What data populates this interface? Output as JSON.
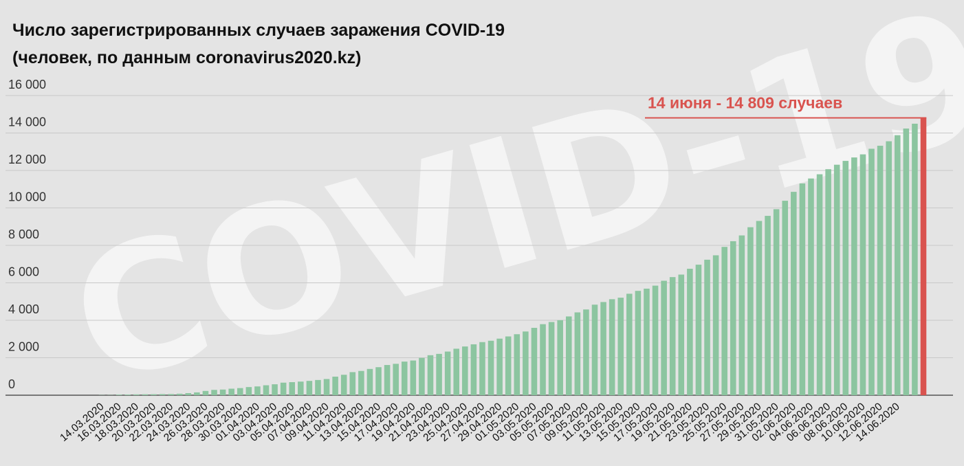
{
  "chart_data": {
    "type": "bar",
    "title": "Число зарегистрированных случаев заражения COVID-19",
    "subtitle": "(человек, по данным coronavirus2020.kz)",
    "watermark": "COVID-19",
    "annotation": "14 июня - 14 809 случаев",
    "ylim": [
      0,
      16000
    ],
    "yticks": [
      0,
      2000,
      4000,
      6000,
      8000,
      10000,
      12000,
      14000,
      16000
    ],
    "ytick_labels": [
      "0",
      "2 000",
      "4 000",
      "6 000",
      "8 000",
      "10 000",
      "12 000",
      "14 000",
      "16 000"
    ],
    "grid": true,
    "x_tick_labels": [
      "14.03.2020",
      "16.03.2020",
      "18.03.2020",
      "20.03.2020",
      "22.03.2020",
      "24.03.2020",
      "26.03.2020",
      "28.03.2020",
      "30.03.2020",
      "01.04.2020",
      "03.04.2020",
      "05.04.2020",
      "07.04.2020",
      "09.04.2020",
      "11.04.2020",
      "13.04.2020",
      "15.04.2020",
      "17.04.2020",
      "19.04.2020",
      "21.04.2020",
      "23.04.2020",
      "25.04.2020",
      "27.04.2020",
      "29.04.2020",
      "01.05.2020",
      "03.05.2020",
      "05.05.2020",
      "07.05.2020",
      "09.05.2020",
      "11.05.2020",
      "13.05.2020",
      "15.05.2020",
      "17.05.2020",
      "19.05.2020",
      "21.05.2020",
      "23.05.2020",
      "25.05.2020",
      "27.05.2020",
      "29.05.2020",
      "31.05.2020",
      "02.06.2020",
      "04.06.2020",
      "06.06.2020",
      "08.06.2020",
      "10.06.2020",
      "12.06.2020",
      "14.06.2020"
    ],
    "series": [
      {
        "color": "#8cc5a0",
        "values": [
          9,
          10,
          33,
          36,
          44,
          49,
          53,
          60,
          62,
          79,
          111,
          150,
          228,
          284,
          302,
          348,
          380,
          435,
          469,
          531,
          584,
          670,
          697,
          727,
          764,
          812,
          865,
          991,
          1091,
          1232,
          1295,
          1402,
          1496,
          1613,
          1676,
          1795,
          1852,
          1995,
          2135,
          2207,
          2330,
          2482,
          2601,
          2717,
          2835,
          2908,
          3020,
          3138,
          3257,
          3402,
          3597,
          3793,
          3908,
          4005,
          4205,
          4422,
          4578,
          4834,
          4975,
          5126,
          5207,
          5417,
          5571,
          5689,
          5850,
          6111,
          6306,
          6440,
          6751,
          6969,
          7234,
          7470,
          7919,
          8222,
          8531,
          8969,
          9304,
          9576,
          9932,
          10382,
          10858,
          11308,
          11571,
          11796,
          12067,
          12306,
          12511,
          12694,
          12859,
          13158,
          13319,
          13558,
          13882,
          14238,
          14496
        ]
      }
    ],
    "highlight": {
      "color": "#d9534f",
      "value": 14809,
      "label": "14.06.2020"
    }
  }
}
